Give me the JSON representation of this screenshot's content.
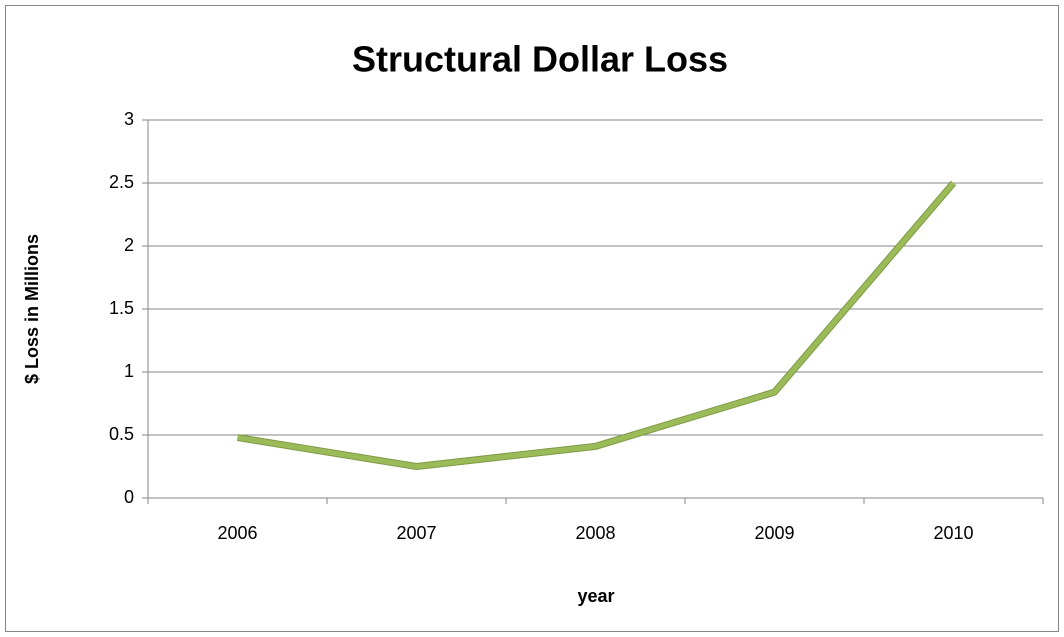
{
  "chart_data": {
    "type": "line",
    "title": "Structural Dollar Loss",
    "x_label": "year",
    "y_label": "$ Loss in Millions",
    "categories": [
      "2006",
      "2007",
      "2008",
      "2009",
      "2010"
    ],
    "series": [
      {
        "name": "Structural Dollar Loss",
        "color": "#9bbb59",
        "values": [
          0.48,
          0.25,
          0.41,
          0.84,
          2.5
        ]
      }
    ],
    "ylim": [
      0,
      3
    ],
    "yticks": [
      0,
      0.5,
      1,
      1.5,
      2,
      2.5,
      3
    ],
    "grid": true
  }
}
